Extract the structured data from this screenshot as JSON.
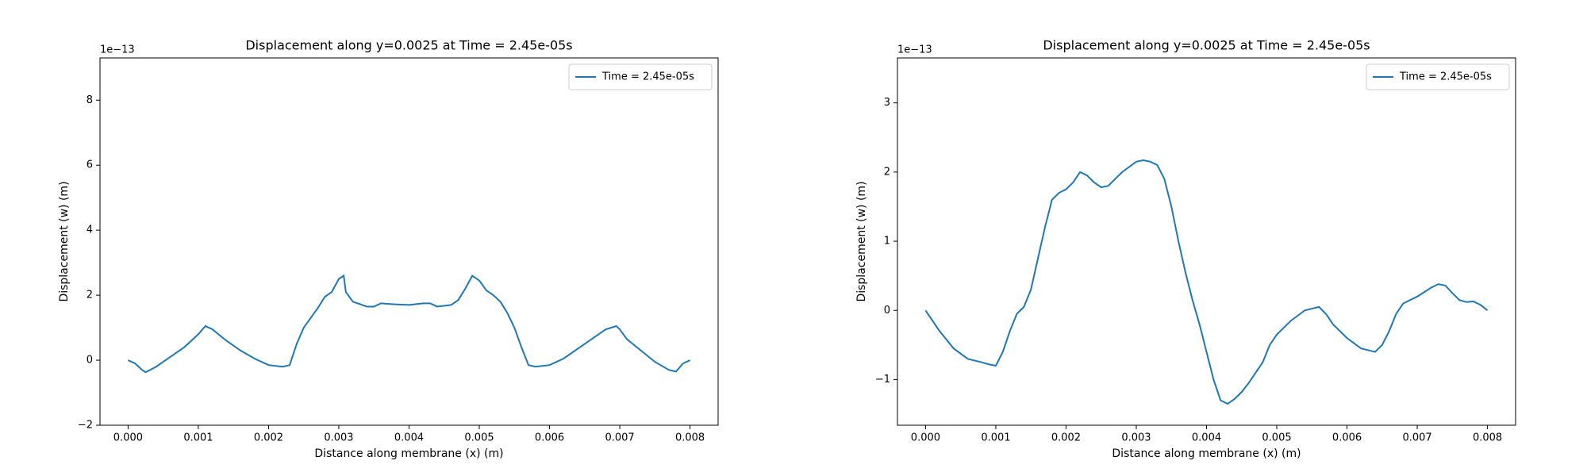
{
  "chart_data": [
    {
      "type": "line",
      "title": "Displacement along y=0.0025 at Time = 2.45e-05s",
      "x_label": "Distance along membrane (x) (m)",
      "y_label": "Displacement (w) (m)",
      "offset_label": "1e−13",
      "x": [
        0,
        0.0001,
        0.0002,
        0.00025,
        0.0004,
        0.0006,
        0.0008,
        0.001,
        0.0011,
        0.0012,
        0.0014,
        0.0016,
        0.0018,
        0.002,
        0.0022,
        0.0023,
        0.0024,
        0.0025,
        0.0027,
        0.0028,
        0.0029,
        0.003,
        0.00307,
        0.0031,
        0.0032,
        0.0034,
        0.0035,
        0.0036,
        0.0038,
        0.004,
        0.0042,
        0.0043,
        0.0044,
        0.0046,
        0.0047,
        0.0048,
        0.0049,
        0.005,
        0.0051,
        0.0052,
        0.0053,
        0.0054,
        0.0055,
        0.0056,
        0.0057,
        0.0058,
        0.006,
        0.0062,
        0.0064,
        0.0066,
        0.0068,
        0.00695,
        0.007,
        0.0071,
        0.0073,
        0.0075,
        0.0077,
        0.0078,
        0.0079,
        0.008
      ],
      "series": [
        {
          "name": "Time = 2.45e-05s",
          "color": "#1f77b4",
          "values": [
            0,
            -0.1,
            -0.3,
            -0.37,
            -0.2,
            0.1,
            0.4,
            0.8,
            1.05,
            0.95,
            0.6,
            0.3,
            0.05,
            -0.15,
            -0.2,
            -0.15,
            0.5,
            1.0,
            1.6,
            1.95,
            2.1,
            2.5,
            2.6,
            2.1,
            1.8,
            1.65,
            1.65,
            1.75,
            1.72,
            1.7,
            1.75,
            1.75,
            1.65,
            1.7,
            1.85,
            2.2,
            2.6,
            2.45,
            2.15,
            2.0,
            1.8,
            1.45,
            1.0,
            0.4,
            -0.15,
            -0.2,
            -0.15,
            0.05,
            0.35,
            0.65,
            0.95,
            1.05,
            0.95,
            0.65,
            0.3,
            -0.05,
            -0.3,
            -0.35,
            -0.1,
            0
          ]
        }
      ],
      "xlim": [
        -0.0004,
        0.0084
      ],
      "ylim": [
        -2,
        9.3
      ],
      "xticks": [
        {
          "value": 0,
          "label": "0.000"
        },
        {
          "value": 0.001,
          "label": "0.001"
        },
        {
          "value": 0.002,
          "label": "0.002"
        },
        {
          "value": 0.003,
          "label": "0.003"
        },
        {
          "value": 0.004,
          "label": "0.004"
        },
        {
          "value": 0.005,
          "label": "0.005"
        },
        {
          "value": 0.006,
          "label": "0.006"
        },
        {
          "value": 0.007,
          "label": "0.007"
        },
        {
          "value": 0.008,
          "label": "0.008"
        }
      ],
      "yticks": [
        {
          "value": -2,
          "label": "−2"
        },
        0,
        2,
        4,
        6,
        8
      ],
      "legend": "upper right"
    },
    {
      "type": "line",
      "title": "Displacement along y=0.0025 at Time = 2.45e-05s",
      "x_label": "Distance along membrane (x) (m)",
      "y_label": "Displacement (w) (m)",
      "offset_label": "1e−13",
      "x": [
        0,
        0.0002,
        0.0004,
        0.0006,
        0.0008,
        0.0009,
        0.001,
        0.0011,
        0.0012,
        0.0013,
        0.0014,
        0.0015,
        0.0016,
        0.0017,
        0.0018,
        0.0019,
        0.002,
        0.0021,
        0.0022,
        0.0023,
        0.0024,
        0.0025,
        0.0026,
        0.0027,
        0.0028,
        0.003,
        0.0031,
        0.0032,
        0.0033,
        0.0034,
        0.0035,
        0.0036,
        0.0037,
        0.0038,
        0.0039,
        0.004,
        0.0041,
        0.0042,
        0.0043,
        0.0044,
        0.0045,
        0.0046,
        0.0047,
        0.0048,
        0.0049,
        0.005,
        0.0052,
        0.0054,
        0.0056,
        0.0057,
        0.0058,
        0.006,
        0.0062,
        0.0064,
        0.0065,
        0.0066,
        0.0067,
        0.0068,
        0.007,
        0.0072,
        0.0073,
        0.0074,
        0.0075,
        0.0076,
        0.0077,
        0.0078,
        0.0079,
        0.008
      ],
      "series": [
        {
          "name": "Time = 2.45e-05s",
          "color": "#1f77b4",
          "values": [
            0,
            -0.3,
            -0.55,
            -0.7,
            -0.75,
            -0.78,
            -0.8,
            -0.6,
            -0.3,
            -0.05,
            0.05,
            0.3,
            0.75,
            1.2,
            1.6,
            1.7,
            1.75,
            1.85,
            2.0,
            1.95,
            1.85,
            1.78,
            1.8,
            1.9,
            2.0,
            2.15,
            2.17,
            2.15,
            2.1,
            1.9,
            1.5,
            1.0,
            0.55,
            0.15,
            -0.2,
            -0.6,
            -1.0,
            -1.3,
            -1.35,
            -1.28,
            -1.18,
            -1.05,
            -0.9,
            -0.75,
            -0.5,
            -0.35,
            -0.15,
            0.0,
            0.05,
            -0.05,
            -0.2,
            -0.4,
            -0.55,
            -0.6,
            -0.5,
            -0.3,
            -0.05,
            0.1,
            0.2,
            0.33,
            0.38,
            0.36,
            0.25,
            0.15,
            0.12,
            0.13,
            0.08,
            0
          ]
        }
      ],
      "xlim": [
        -0.0004,
        0.0084
      ],
      "ylim": [
        -1.66,
        3.65
      ],
      "xticks": [
        {
          "value": 0,
          "label": "0.000"
        },
        {
          "value": 0.001,
          "label": "0.001"
        },
        {
          "value": 0.002,
          "label": "0.002"
        },
        {
          "value": 0.003,
          "label": "0.003"
        },
        {
          "value": 0.004,
          "label": "0.004"
        },
        {
          "value": 0.005,
          "label": "0.005"
        },
        {
          "value": 0.006,
          "label": "0.006"
        },
        {
          "value": 0.007,
          "label": "0.007"
        },
        {
          "value": 0.008,
          "label": "0.008"
        }
      ],
      "yticks": [
        {
          "value": -1,
          "label": "−1"
        },
        0,
        1,
        2,
        3
      ],
      "legend": "upper right"
    }
  ]
}
